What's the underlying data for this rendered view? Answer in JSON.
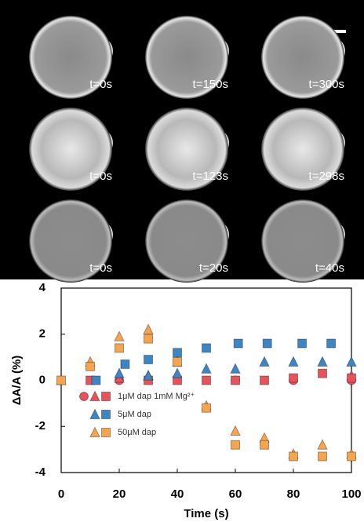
{
  "micrographs": {
    "labels": [
      [
        "t=0s",
        "t=150s",
        "t=300s"
      ],
      [
        "t=0s",
        "t=123s",
        "t=298s"
      ],
      [
        "t=0s",
        "t=20s",
        "t=40s"
      ]
    ]
  },
  "chart_data": {
    "type": "scatter",
    "xlabel": "Time (s)",
    "ylabel": "ΔA/A (%)",
    "xlim": [
      0,
      100
    ],
    "xticks": [
      0,
      20,
      40,
      60,
      80,
      100
    ],
    "ylim": [
      -4,
      4
    ],
    "yticks": [
      -4,
      -2,
      0,
      2,
      4
    ],
    "series": [
      {
        "name": "1μM dap 1mM Mg²⁺",
        "color": "#e8525b",
        "subsets": [
          {
            "marker": "circle",
            "x": [
              20,
              60,
              80,
              100
            ],
            "values": [
              0,
              0,
              0,
              0
            ]
          },
          {
            "marker": "triangle",
            "x": [
              20,
              30,
              100
            ],
            "values": [
              0.1,
              0.2,
              0.2
            ]
          },
          {
            "marker": "square",
            "x": [
              10,
              30,
              40,
              50,
              60,
              70,
              80,
              90,
              100
            ],
            "values": [
              0,
              0,
              0,
              0,
              0,
              0,
              0.1,
              0.3,
              0.1
            ]
          }
        ]
      },
      {
        "name": "5μM dap",
        "color": "#3d86c6",
        "subsets": [
          {
            "marker": "triangle",
            "x": [
              20,
              30,
              40,
              50,
              60,
              70,
              80,
              90,
              100
            ],
            "values": [
              0.3,
              0.2,
              0.3,
              0.5,
              0.5,
              0.8,
              0.8,
              0.8,
              0.8
            ]
          },
          {
            "marker": "square",
            "x": [
              12,
              22,
              30,
              40,
              50,
              61,
              71,
              83,
              93
            ],
            "values": [
              0,
              0.7,
              0.9,
              1.2,
              1.4,
              1.6,
              1.6,
              1.6,
              1.6
            ]
          }
        ]
      },
      {
        "name": "50μM dap",
        "color": "#f6a54e",
        "subsets": [
          {
            "marker": "triangle",
            "x": [
              0,
              10,
              20,
              30,
              40,
              50,
              60,
              70,
              80,
              90,
              100
            ],
            "values": [
              0,
              0.8,
              1.9,
              2.2,
              0.8,
              -1.1,
              -2.2,
              -2.5,
              -3.2,
              -2.8,
              -3.2
            ]
          },
          {
            "marker": "square",
            "x": [
              0,
              10,
              20,
              30,
              40,
              50,
              60,
              70,
              80,
              90,
              100
            ],
            "values": [
              0,
              0.6,
              1.4,
              1.8,
              0.8,
              -1.2,
              -2.8,
              -2.8,
              -3.3,
              -3.3,
              -3.3
            ]
          }
        ]
      }
    ]
  }
}
